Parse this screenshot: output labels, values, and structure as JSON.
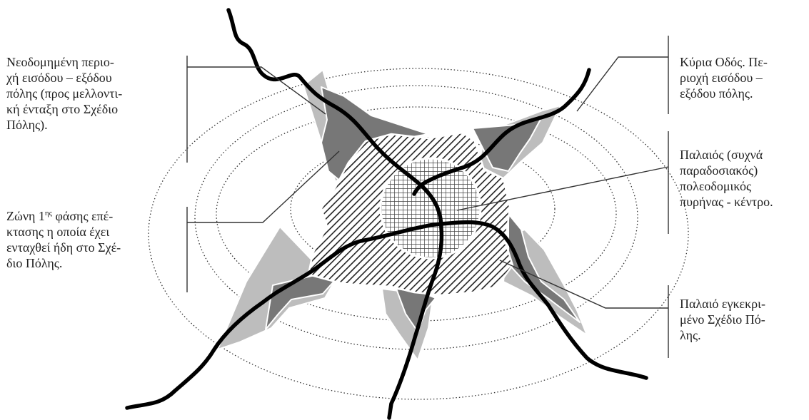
{
  "labels": {
    "new_entry_zone": "Νεοδομημένη περιο-\nχή εισόδου – εξόδου\nπόλης (προς μελλοντι-\nκή ένταξη στο Σχέδιο\nΠόλης).",
    "phase1_zone_pre": "Ζώνη 1",
    "phase1_zone_sup": "ης",
    "phase1_zone_post": " φάσης επέ-\nκτασης η οποία έχει\nενταχθεί ήδη στο Σχέ-\nδιο Πόλης.",
    "main_road": "Κύρια Οδός. Πε-\nριοχή εισόδου –\nεξόδου πόλης.",
    "old_core": "Παλαιός (συχνά\nπαραδοσιακός)\nπολεοδομικός\nπυρήνας - κέντρο.",
    "old_approved_plan": "Παλαιό εγκεκρι-\nμένο Σχέδιο Πό-\nλης."
  },
  "colors": {
    "road": "#000000",
    "outer_growth_light": "#bdbdbd",
    "outer_growth_dark": "#777777",
    "hatch_fill": "#ffffff",
    "hatch_line": "#222222",
    "grid_line": "#444444",
    "leader_line": "#333333",
    "ring_dots": "#333333"
  }
}
